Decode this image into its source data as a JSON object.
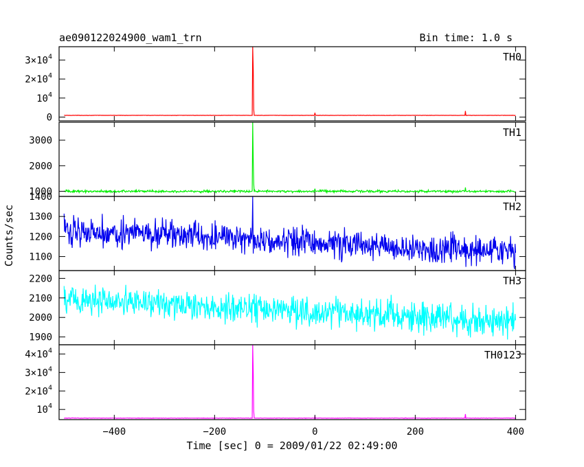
{
  "header": {
    "left_title": "ae090122024900_wam1_trn",
    "right_title": "Bin time: 1.0 s"
  },
  "chart_data": {
    "type": "line",
    "title": "ae090122024900_wam1_trn",
    "subtitle": "Bin time: 1.0 s",
    "xlabel": "Time [sec] 0 = 2009/01/22 02:49:00",
    "ylabel": "Counts/sec",
    "xlim": [
      -510,
      420
    ],
    "x_ticks": [
      -400,
      -200,
      0,
      200,
      400
    ],
    "x_tick_labels": [
      "−400",
      "−200",
      "0",
      "200",
      "400"
    ],
    "panels": [
      {
        "name": "TH0",
        "color": "#ff0000",
        "ylim": [
          -2000,
          37000
        ],
        "y_ticks": [
          0,
          10000,
          20000,
          30000
        ],
        "y_tick_labels": [
          {
            "m": "0",
            "e": ""
          },
          {
            "m": "",
            "e": "10"
          },
          {
            "m": "2×",
            "e": "10"
          },
          {
            "m": "3×",
            "e": "10"
          }
        ],
        "y_tick_exps": [
          "",
          "4",
          "4",
          "4"
        ],
        "baseline": 900,
        "noise": 60,
        "trend": 0,
        "spikes": [
          [
            -124,
            37000
          ],
          [
            -123,
            25000
          ],
          [
            -122,
            4000
          ],
          [
            0,
            2300
          ],
          [
            300,
            3200
          ]
        ]
      },
      {
        "name": "TH1",
        "color": "#00ee00",
        "ylim": [
          800,
          3700
        ],
        "y_ticks": [
          1000,
          2000,
          3000
        ],
        "y_tick_labels": [
          {
            "m": "1000",
            "e": ""
          },
          {
            "m": "2000",
            "e": ""
          },
          {
            "m": "3000",
            "e": ""
          }
        ],
        "y_tick_exps": [
          "",
          "",
          ""
        ],
        "baseline": 1000,
        "noise": 35,
        "trend": 0,
        "spikes": [
          [
            -124,
            3700
          ],
          [
            -123,
            2200
          ],
          [
            -122,
            1300
          ],
          [
            0,
            1100
          ],
          [
            300,
            1150
          ]
        ]
      },
      {
        "name": "TH2",
        "color": "#0000ee",
        "ylim": [
          1030,
          1400
        ],
        "y_ticks": [
          1100,
          1200,
          1300,
          1400
        ],
        "y_tick_labels": [
          {
            "m": "1100",
            "e": ""
          },
          {
            "m": "1200",
            "e": ""
          },
          {
            "m": "1300",
            "e": ""
          },
          {
            "m": "1400",
            "e": ""
          }
        ],
        "y_tick_exps": [
          "",
          "",
          "",
          ""
        ],
        "baseline": 1235,
        "noise": 55,
        "trend": -0.13,
        "spikes": [
          [
            -124,
            1400
          ]
        ]
      },
      {
        "name": "TH3",
        "color": "#00ffff",
        "ylim": [
          1860,
          2240
        ],
        "y_ticks": [
          1900,
          2000,
          2100,
          2200
        ],
        "y_tick_labels": [
          {
            "m": "1900",
            "e": ""
          },
          {
            "m": "2000",
            "e": ""
          },
          {
            "m": "2100",
            "e": ""
          },
          {
            "m": "2200",
            "e": ""
          }
        ],
        "y_tick_exps": [
          "",
          "",
          "",
          ""
        ],
        "baseline": 2095,
        "noise": 60,
        "trend": -0.13,
        "spikes": []
      },
      {
        "name": "TH0123",
        "color": "#ff00ff",
        "ylim": [
          4500,
          45000
        ],
        "y_ticks": [
          10000,
          20000,
          30000,
          40000
        ],
        "y_tick_labels": [
          {
            "m": "",
            "e": "10"
          },
          {
            "m": "2×",
            "e": "10"
          },
          {
            "m": "3×",
            "e": "10"
          },
          {
            "m": "4×",
            "e": "10"
          }
        ],
        "y_tick_exps": [
          "4",
          "4",
          "4",
          "4"
        ],
        "baseline": 5300,
        "noise": 90,
        "trend": 0,
        "spikes": [
          [
            -124,
            45000
          ],
          [
            -123,
            30000
          ],
          [
            -122,
            9000
          ],
          [
            0,
            6300
          ],
          [
            300,
            7500
          ]
        ]
      }
    ]
  }
}
